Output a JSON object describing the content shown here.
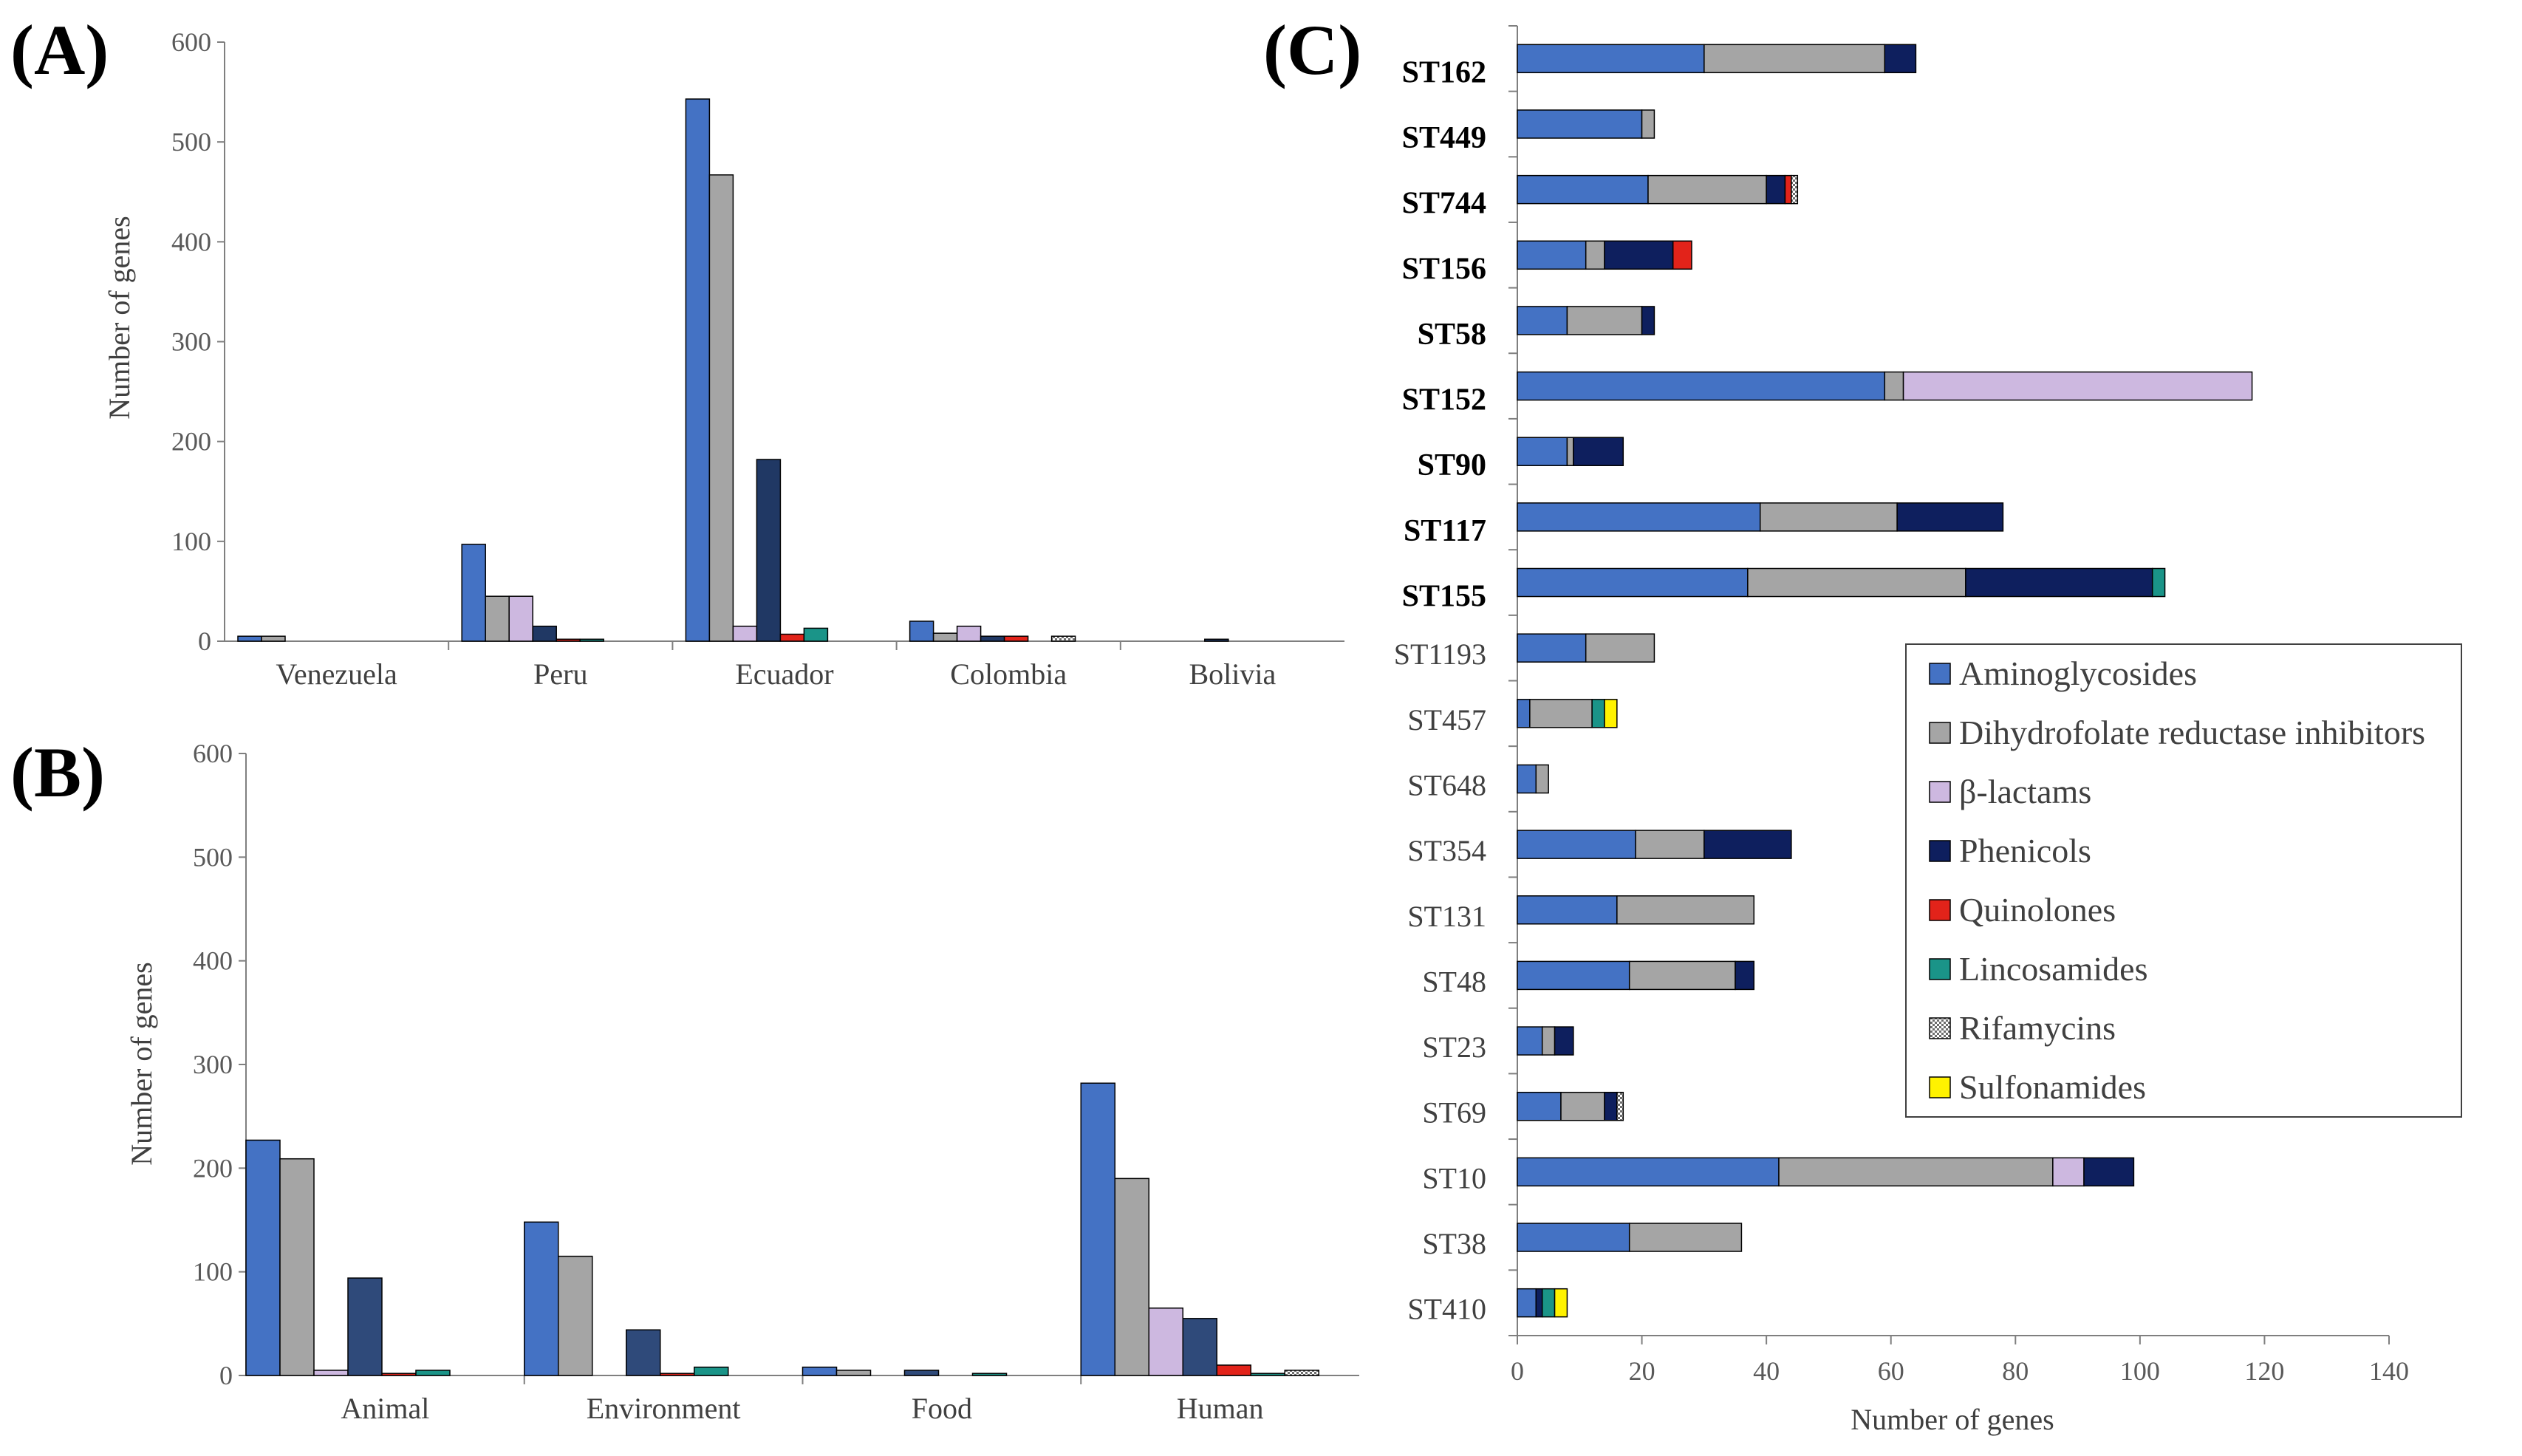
{
  "colors": {
    "Aminoglycosides": "#4472C4",
    "Dihydrofolate reductase inhibitors": "#A5A5A5",
    "β-lactams": "#CDB8E0",
    "Phenicols_A": "#203864",
    "Phenicols_B": "#2F4A7A",
    "Phenicols_C": "#0E1F5E",
    "Quinolones": "#E2231A",
    "Lincosamides": "#1A9488",
    "Rifamycins": "#7F7F7F",
    "Sulfonamides": "#FFF200"
  },
  "chart_data": [
    {
      "id": "A",
      "panel_label": "(A)",
      "type": "bar",
      "ylabel": "Number of genes",
      "ylim": [
        0,
        600
      ],
      "yticks": [
        0,
        100,
        200,
        300,
        400,
        500,
        600
      ],
      "categories": [
        "Venezuela",
        "Peru",
        "Ecuador",
        "Colombia",
        "Bolivia"
      ],
      "series": [
        {
          "name": "Aminoglycosides",
          "values": [
            5,
            97,
            543,
            20,
            0
          ]
        },
        {
          "name": "Dihydrofolate reductase inhibitors",
          "values": [
            5,
            45,
            467,
            8,
            0
          ]
        },
        {
          "name": "β-lactams",
          "values": [
            0,
            45,
            15,
            15,
            0
          ]
        },
        {
          "name": "Phenicols",
          "values": [
            0,
            15,
            182,
            5,
            2
          ]
        },
        {
          "name": "Quinolones",
          "values": [
            0,
            2,
            7,
            5,
            0
          ]
        },
        {
          "name": "Lincosamides",
          "values": [
            0,
            2,
            13,
            0,
            0
          ]
        },
        {
          "name": "Rifamycins",
          "values": [
            0,
            0,
            0,
            5,
            0
          ]
        },
        {
          "name": "Sulfonamides",
          "values": [
            0,
            0,
            0,
            0,
            0
          ]
        }
      ]
    },
    {
      "id": "B",
      "panel_label": "(B)",
      "type": "bar",
      "ylabel": "Number of genes",
      "ylim": [
        0,
        600
      ],
      "yticks": [
        0,
        100,
        200,
        300,
        400,
        500,
        600
      ],
      "categories": [
        "Animal",
        "Environment",
        "Food",
        "Human"
      ],
      "series": [
        {
          "name": "Aminoglycosides",
          "values": [
            227,
            148,
            8,
            282
          ]
        },
        {
          "name": "Dihydrofolate reductase inhibitors",
          "values": [
            209,
            115,
            5,
            190
          ]
        },
        {
          "name": "β-lactams",
          "values": [
            5,
            0,
            0,
            65
          ]
        },
        {
          "name": "Phenicols",
          "values": [
            94,
            44,
            5,
            55
          ]
        },
        {
          "name": "Quinolones",
          "values": [
            2,
            2,
            0,
            10
          ]
        },
        {
          "name": "Lincosamides",
          "values": [
            5,
            8,
            2,
            2
          ]
        },
        {
          "name": "Rifamycins",
          "values": [
            0,
            0,
            0,
            5
          ]
        },
        {
          "name": "Sulfonamides",
          "values": [
            0,
            0,
            0,
            0
          ]
        }
      ]
    },
    {
      "id": "C",
      "panel_label": "(C)",
      "type": "bar",
      "orientation": "horizontal-stacked",
      "xlabel": "Number of genes",
      "xlim": [
        0,
        140
      ],
      "xticks": [
        0,
        20,
        40,
        60,
        80,
        100,
        120,
        140
      ],
      "categories": [
        "ST162",
        "ST449",
        "ST744",
        "ST156",
        "ST58",
        "ST152",
        "ST90",
        "ST117",
        "ST155",
        "ST1193",
        "ST457",
        "ST648",
        "ST354",
        "ST131",
        "ST48",
        "ST23",
        "ST69",
        "ST10",
        "ST38",
        "ST410"
      ],
      "bold_categories": [
        "ST162",
        "ST449",
        "ST744",
        "ST156",
        "ST58",
        "ST152",
        "ST90",
        "ST117",
        "ST155"
      ],
      "series": [
        {
          "name": "Aminoglycosides",
          "values": [
            30,
            20,
            21,
            11,
            8,
            59,
            8,
            39,
            37,
            11,
            2,
            3,
            19,
            16,
            18,
            4,
            7,
            42,
            18,
            3
          ]
        },
        {
          "name": "Dihydrofolate reductase inhibitors",
          "values": [
            29,
            2,
            19,
            3,
            12,
            3,
            1,
            22,
            35,
            11,
            10,
            2,
            11,
            22,
            17,
            2,
            7,
            44,
            18,
            0
          ]
        },
        {
          "name": "β-lactams",
          "values": [
            0,
            0,
            0,
            0,
            0,
            56,
            0,
            0,
            0,
            0,
            0,
            0,
            0,
            0,
            0,
            0,
            0,
            5,
            0,
            0
          ]
        },
        {
          "name": "Phenicols",
          "values": [
            5,
            0,
            3,
            11,
            2,
            0,
            8,
            17,
            30,
            0,
            0,
            0,
            14,
            0,
            3,
            3,
            2,
            8,
            0,
            1
          ]
        },
        {
          "name": "Quinolones",
          "values": [
            0,
            0,
            1,
            3,
            0,
            0,
            0,
            0,
            0,
            0,
            0,
            0,
            0,
            0,
            0,
            0,
            0,
            0,
            0,
            0
          ]
        },
        {
          "name": "Lincosamides",
          "values": [
            0,
            0,
            0,
            0,
            0,
            0,
            0,
            0,
            2,
            0,
            2,
            0,
            0,
            0,
            0,
            0,
            0,
            0,
            0,
            2
          ]
        },
        {
          "name": "Rifamycins",
          "values": [
            0,
            0,
            1,
            0,
            0,
            0,
            0,
            0,
            0,
            0,
            0,
            0,
            0,
            0,
            0,
            0,
            1,
            0,
            0,
            0
          ]
        },
        {
          "name": "Sulfonamides",
          "values": [
            0,
            0,
            0,
            0,
            0,
            0,
            0,
            0,
            0,
            0,
            2,
            0,
            0,
            0,
            0,
            0,
            0,
            0,
            0,
            2
          ]
        }
      ],
      "legend": {
        "position": "right",
        "entries": [
          "Aminoglycosides",
          "Dihydrofolate reductase inhibitors",
          "β-lactams",
          "Phenicols",
          "Quinolones",
          "Lincosamides",
          "Rifamycins",
          "Sulfonamides"
        ]
      }
    }
  ]
}
